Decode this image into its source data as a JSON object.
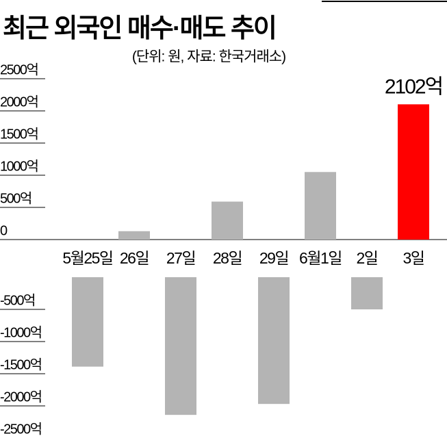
{
  "chart_data": {
    "type": "bar",
    "title": "최근 외국인 매수·매도 추이",
    "subtitle": "(단위: 원, 자료: 한국거래소)",
    "categories": [
      "5월25일",
      "26일",
      "27일",
      "28일",
      "29일",
      "6월1일",
      "2일",
      "3일"
    ],
    "values": [
      -1390,
      130,
      -2140,
      590,
      -1970,
      1050,
      -500,
      2102
    ],
    "value_labels": [
      null,
      null,
      null,
      null,
      null,
      null,
      null,
      "2102억"
    ],
    "colors": [
      "#b4b4b4",
      "#b4b4b4",
      "#b4b4b4",
      "#b4b4b4",
      "#b4b4b4",
      "#b4b4b4",
      "#b4b4b4",
      "#ff0000"
    ],
    "ylim": [
      -2500,
      2500
    ],
    "yticks": [
      {
        "value": 2500,
        "label": "2500억"
      },
      {
        "value": 2000,
        "label": "2000억"
      },
      {
        "value": 1500,
        "label": "1500억"
      },
      {
        "value": 1000,
        "label": "1000억"
      },
      {
        "value": 500,
        "label": "500억"
      },
      0,
      {
        "value": -500,
        "label": "-500억"
      },
      {
        "value": -1000,
        "label": "-1000억"
      },
      {
        "value": -1500,
        "label": "-1500억"
      },
      {
        "value": -2000,
        "label": "-2000억"
      },
      {
        "value": -2500,
        "label": "-2500억"
      }
    ]
  }
}
